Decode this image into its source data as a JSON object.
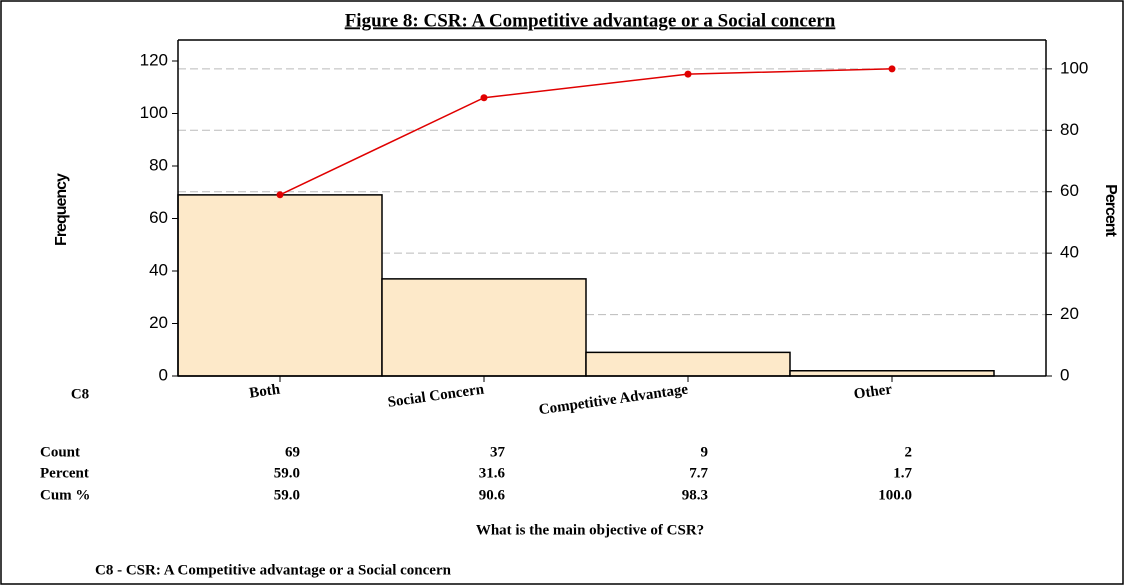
{
  "chart_data": {
    "type": "pareto",
    "title": "Figure 8: CSR: A Competitive advantage or a Social concern",
    "category_label": "C8",
    "categories": [
      "Both",
      "Social Concern",
      "Competitive Advantage",
      "Other"
    ],
    "series": [
      {
        "name": "Count",
        "color": "#fde9c9",
        "values": [
          69,
          37,
          9,
          2
        ]
      },
      {
        "name": "Percent",
        "values": [
          59.0,
          31.6,
          7.7,
          1.7
        ],
        "value_labels": [
          "59.0",
          "31.6",
          "7.7",
          "1.7"
        ]
      },
      {
        "name": "Cum %",
        "color": "#e00000",
        "axis": "y2",
        "values": [
          59.0,
          90.6,
          98.3,
          100.0
        ],
        "value_labels": [
          "59.0",
          "90.6",
          "98.3",
          "100.0"
        ]
      }
    ],
    "x_label": "What is the main objective of CSR?",
    "y_label": "Frequency",
    "y2_label": "Percent",
    "ylim": [
      0,
      128
    ],
    "yticks": [
      0,
      20,
      40,
      60,
      80,
      100,
      120
    ],
    "y2lim": [
      0,
      109.4
    ],
    "y2ticks": [
      0,
      20,
      40,
      60,
      80,
      100
    ],
    "grid": true,
    "footnote": "C8 - CSR: A Competitive advantage or a Social concern"
  }
}
